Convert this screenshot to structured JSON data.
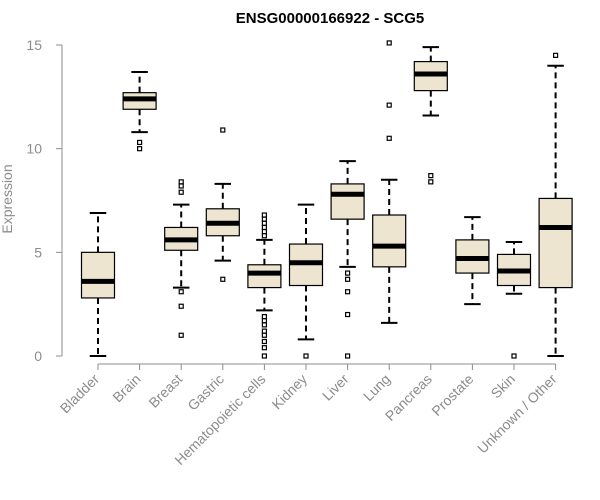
{
  "chart_data": {
    "type": "boxplot",
    "title": "ENSG00000166922 - SCG5",
    "xlabel": "",
    "ylabel": "Expression",
    "ylim": [
      0,
      15
    ],
    "yticks": [
      0,
      5,
      10,
      15
    ],
    "colors": {
      "box_fill": "#ede5cf",
      "outline": "#000000",
      "axis": "#8c8c8c"
    },
    "categories": [
      "Bladder",
      "Brain",
      "Breast",
      "Gastric",
      "Hematopoietic cells",
      "Kidney",
      "Liver",
      "Lung",
      "Pancreas",
      "Prostate",
      "Skin",
      "Unknown / Other"
    ],
    "boxes": [
      {
        "category": "Bladder",
        "whisker_low": 0.0,
        "q1": 2.8,
        "median": 3.6,
        "q3": 5.0,
        "whisker_high": 6.9,
        "outliers": []
      },
      {
        "category": "Brain",
        "whisker_low": 10.8,
        "q1": 11.9,
        "median": 12.4,
        "q3": 12.7,
        "whisker_high": 13.7,
        "outliers": [
          10.3,
          10.0
        ]
      },
      {
        "category": "Breast",
        "whisker_low": 3.3,
        "q1": 5.1,
        "median": 5.6,
        "q3": 6.2,
        "whisker_high": 7.3,
        "outliers": [
          8.4,
          8.2,
          7.9,
          3.1,
          2.4,
          1.0
        ]
      },
      {
        "category": "Gastric",
        "whisker_low": 4.6,
        "q1": 5.8,
        "median": 6.4,
        "q3": 7.1,
        "whisker_high": 8.3,
        "outliers": [
          10.9,
          3.7
        ]
      },
      {
        "category": "Hematopoietic cells",
        "whisker_low": 2.2,
        "q1": 3.3,
        "median": 4.0,
        "q3": 4.4,
        "whisker_high": 5.6,
        "outliers": [
          6.8,
          6.6,
          6.4,
          6.2,
          6.0,
          5.8,
          1.9,
          1.7,
          1.5,
          1.2,
          1.0,
          0.7,
          0.4,
          0.0
        ]
      },
      {
        "category": "Kidney",
        "whisker_low": 0.8,
        "q1": 3.4,
        "median": 4.5,
        "q3": 5.4,
        "whisker_high": 7.3,
        "outliers": [
          0.0
        ]
      },
      {
        "category": "Liver",
        "whisker_low": 4.3,
        "q1": 6.6,
        "median": 7.8,
        "q3": 8.3,
        "whisker_high": 9.4,
        "outliers": [
          4.0,
          3.7,
          3.1,
          2.0,
          0.0
        ]
      },
      {
        "category": "Lung",
        "whisker_low": 1.6,
        "q1": 4.3,
        "median": 5.3,
        "q3": 6.8,
        "whisker_high": 8.5,
        "outliers": [
          15.1,
          12.1,
          10.5
        ]
      },
      {
        "category": "Pancreas",
        "whisker_low": 11.6,
        "q1": 12.8,
        "median": 13.6,
        "q3": 14.2,
        "whisker_high": 14.9,
        "outliers": [
          8.7,
          8.4
        ]
      },
      {
        "category": "Prostate",
        "whisker_low": 2.5,
        "q1": 4.0,
        "median": 4.7,
        "q3": 5.6,
        "whisker_high": 6.7,
        "outliers": []
      },
      {
        "category": "Skin",
        "whisker_low": 3.0,
        "q1": 3.4,
        "median": 4.1,
        "q3": 4.9,
        "whisker_high": 5.5,
        "outliers": [
          0.0
        ]
      },
      {
        "category": "Unknown / Other",
        "whisker_low": 0.0,
        "q1": 3.3,
        "median": 6.2,
        "q3": 7.6,
        "whisker_high": 14.0,
        "outliers": [
          14.5
        ]
      }
    ]
  }
}
